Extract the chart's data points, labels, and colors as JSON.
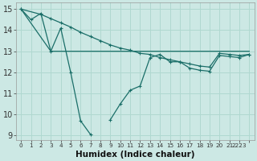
{
  "xlabel": "Humidex (Indice chaleur)",
  "background_color": "#cce8e4",
  "grid_color": "#b0d8d0",
  "line_color": "#1a6e68",
  "xlim": [
    -0.5,
    23.5
  ],
  "ylim": [
    8.8,
    15.3
  ],
  "yticks": [
    9,
    10,
    11,
    12,
    13,
    14,
    15
  ],
  "xtick_positions": [
    0,
    1,
    2,
    3,
    4,
    5,
    6,
    7,
    8,
    9,
    10,
    11,
    12,
    13,
    14,
    15,
    16,
    17,
    18,
    19,
    20,
    21,
    22,
    23
  ],
  "xtick_labels": [
    "0",
    "1",
    "2",
    "3",
    "4",
    "5",
    "6",
    "7",
    "8",
    "9",
    "10",
    "11",
    "12",
    "13",
    "14",
    "15",
    "16",
    "17",
    "18",
    "19",
    "20",
    "21",
    "2223",
    ""
  ],
  "line1_x": [
    0,
    1,
    2,
    3,
    4,
    5,
    6,
    7,
    9,
    10,
    11,
    12,
    13,
    14,
    15,
    16,
    17,
    18,
    19,
    20,
    21,
    22,
    23
  ],
  "line1_y": [
    15.0,
    14.5,
    14.8,
    13.0,
    14.1,
    12.0,
    9.7,
    9.05,
    9.75,
    10.5,
    11.15,
    11.35,
    12.7,
    12.85,
    12.5,
    12.5,
    12.2,
    12.1,
    12.05,
    12.8,
    12.75,
    12.7,
    12.85
  ],
  "line2_x": [
    0,
    2,
    3,
    4,
    5,
    6,
    7,
    8,
    9,
    10,
    11,
    12,
    13,
    14,
    15,
    16,
    17,
    18,
    19,
    20,
    21,
    22,
    23
  ],
  "line2_y": [
    15.0,
    14.75,
    14.55,
    14.35,
    14.15,
    13.9,
    13.7,
    13.5,
    13.3,
    13.15,
    13.05,
    12.9,
    12.85,
    12.7,
    12.6,
    12.5,
    12.4,
    12.3,
    12.25,
    12.9,
    12.85,
    12.8,
    12.85
  ],
  "line3_x": [
    0,
    3,
    23
  ],
  "line3_y": [
    15.0,
    13.0,
    13.0
  ]
}
